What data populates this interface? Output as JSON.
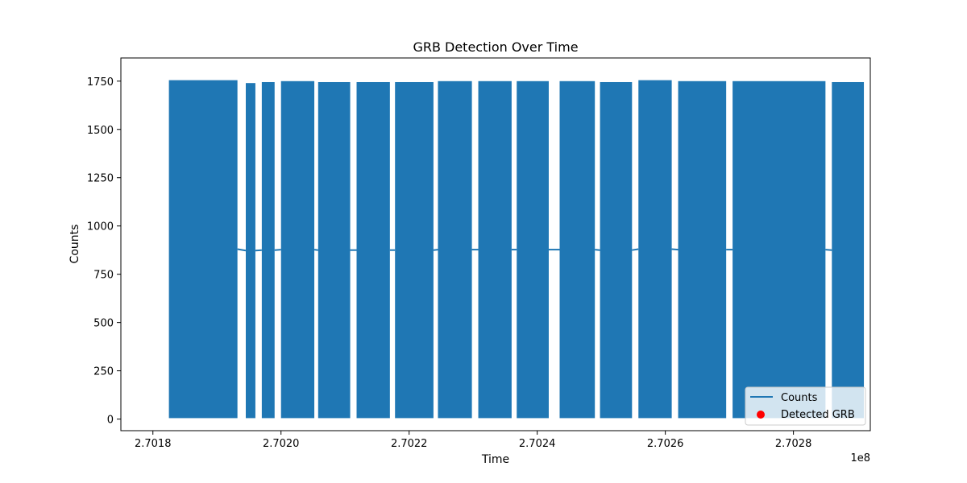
{
  "chart_data": {
    "type": "line",
    "title": "GRB Detection Over Time",
    "xlabel": "Time",
    "ylabel": "Counts",
    "x_offset_label": "1e8",
    "xlim": [
      2.70175,
      2.70292
    ],
    "ylim": [
      -60,
      1870
    ],
    "x_ticks": [
      2.7018,
      2.702,
      2.7022,
      2.7024,
      2.7026,
      2.7028
    ],
    "x_tick_labels": [
      "2.7018",
      "2.7020",
      "2.7022",
      "2.7024",
      "2.7026",
      "2.7028"
    ],
    "y_ticks": [
      0,
      250,
      500,
      750,
      1000,
      1250,
      1500,
      1750
    ],
    "y_tick_labels": [
      "0",
      "250",
      "500",
      "750",
      "1000",
      "1250",
      "1500",
      "1750"
    ],
    "grid": false,
    "legend_position": "lower-right",
    "series": [
      {
        "name": "Counts",
        "color": "#1f77b4",
        "kind": "line",
        "x_range": [
          2.70182,
          2.70291
        ],
        "y_range": [
          5,
          1755
        ],
        "segments": [
          {
            "x": [
              2.701825,
              2.701932
            ],
            "y": [
              5,
              1755
            ]
          },
          {
            "x": [
              2.701945,
              2.70196
            ],
            "y": [
              5,
              1740
            ]
          },
          {
            "x": [
              2.70197,
              2.70199
            ],
            "y": [
              5,
              1745
            ]
          },
          {
            "x": [
              2.702,
              2.702052
            ],
            "y": [
              5,
              1750
            ]
          },
          {
            "x": [
              2.702058,
              2.702108
            ],
            "y": [
              5,
              1745
            ]
          },
          {
            "x": [
              2.702118,
              2.70217
            ],
            "y": [
              5,
              1745
            ]
          },
          {
            "x": [
              2.702178,
              2.702238
            ],
            "y": [
              5,
              1745
            ]
          },
          {
            "x": [
              2.702245,
              2.702298
            ],
            "y": [
              5,
              1750
            ]
          },
          {
            "x": [
              2.702308,
              2.70236
            ],
            "y": [
              5,
              1750
            ]
          },
          {
            "x": [
              2.702368,
              2.702418
            ],
            "y": [
              5,
              1750
            ]
          },
          {
            "x": [
              2.702435,
              2.70249
            ],
            "y": [
              5,
              1750
            ]
          },
          {
            "x": [
              2.702498,
              2.702548
            ],
            "y": [
              5,
              1745
            ]
          },
          {
            "x": [
              2.702558,
              2.70261
            ],
            "y": [
              5,
              1755
            ]
          },
          {
            "x": [
              2.70262,
              2.702695
            ],
            "y": [
              5,
              1750
            ]
          },
          {
            "x": [
              2.702705,
              2.70285
            ],
            "y": [
              5,
              1750
            ]
          },
          {
            "x": [
              2.70286,
              2.70291
            ],
            "y": [
              5,
              1745
            ]
          }
        ]
      },
      {
        "name": "Detected GRB",
        "color": "#ff0000",
        "kind": "scatter",
        "points": []
      }
    ]
  }
}
